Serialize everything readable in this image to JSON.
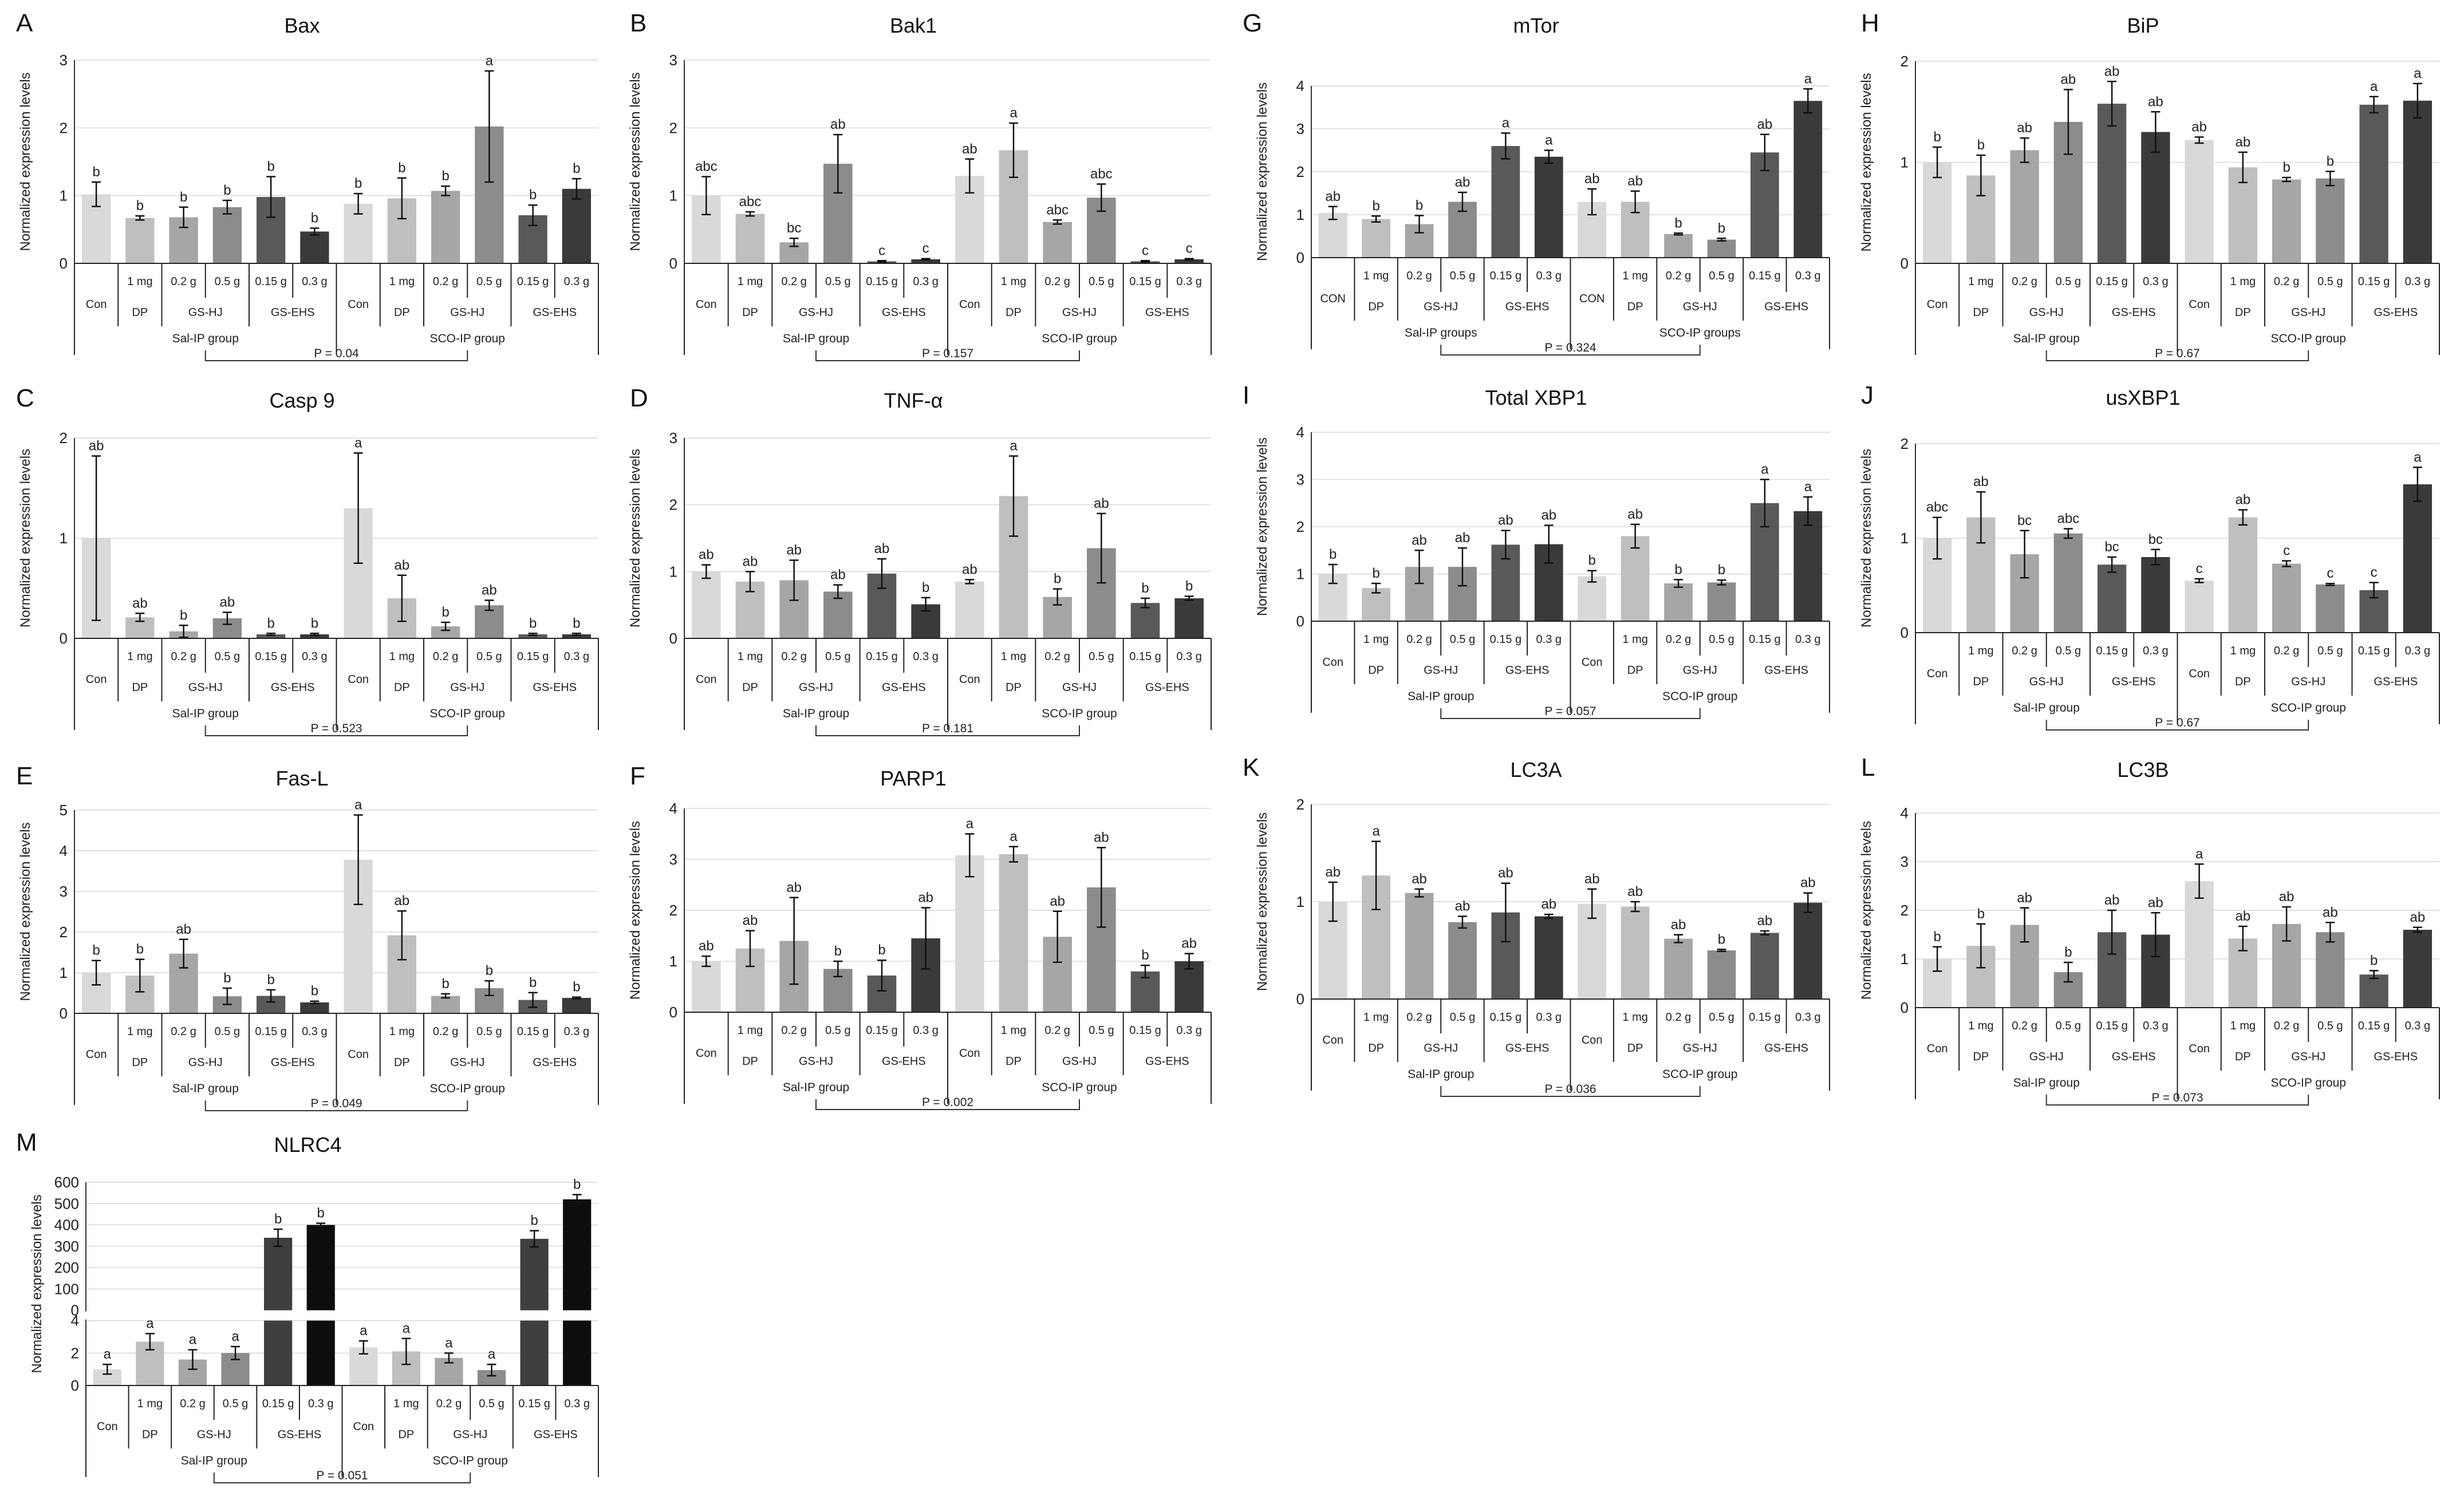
{
  "figure": {
    "shared": {
      "ylabel": "Normalized expression levels",
      "treatments": [
        "Con",
        "DP",
        "GS-HJ",
        "GS-EHS"
      ],
      "doses": [
        "",
        "1 mg",
        "0.2 g",
        "0.5 g",
        "0.15 g",
        "0.3 g"
      ],
      "group_labels": [
        "Sal-IP group",
        "SCO-IP group"
      ],
      "group_labels_alt": [
        "Sal-IP groups",
        "SCO-IP groups"
      ]
    },
    "colors": {
      "bars": [
        "#d9d9d9",
        "#bfbfbf",
        "#a6a6a6",
        "#8c8c8c",
        "#595959",
        "#3a3a3a"
      ],
      "bar_con_mtor": "#d0d0d0"
    }
  },
  "chart_data": [
    {
      "id": "A",
      "type": "bar",
      "title": "Bax",
      "ylim": [
        0,
        3
      ],
      "yticks": [
        0,
        1,
        2,
        3
      ],
      "first_label": "Con",
      "group_style": "default",
      "values": [
        1.02,
        0.67,
        0.68,
        0.83,
        0.98,
        0.47,
        0.88,
        0.96,
        1.07,
        2.02,
        0.71,
        1.1
      ],
      "errors": [
        0.18,
        0.03,
        0.15,
        0.1,
        0.3,
        0.05,
        0.15,
        0.3,
        0.07,
        0.82,
        0.15,
        0.15
      ],
      "letters": [
        "b",
        "b",
        "b",
        "b",
        "b",
        "b",
        "b",
        "b",
        "b",
        "a",
        "b",
        "b"
      ],
      "pvalue": "P = 0.04"
    },
    {
      "id": "B",
      "type": "bar",
      "title": "Bak1",
      "ylim": [
        0,
        3
      ],
      "yticks": [
        0,
        1,
        2,
        3
      ],
      "first_label": "Con",
      "group_style": "default",
      "values": [
        1.0,
        0.73,
        0.31,
        1.47,
        0.03,
        0.06,
        1.29,
        1.67,
        0.61,
        0.97,
        0.03,
        0.06
      ],
      "errors": [
        0.28,
        0.03,
        0.06,
        0.43,
        0.01,
        0.01,
        0.25,
        0.4,
        0.03,
        0.2,
        0.01,
        0.01
      ],
      "letters": [
        "abc",
        "abc",
        "bc",
        "ab",
        "c",
        "c",
        "ab",
        "a",
        "abc",
        "abc",
        "c",
        "c"
      ],
      "pvalue": "P = 0.157"
    },
    {
      "id": "G",
      "type": "bar",
      "title": "mTor",
      "ylim": [
        0,
        4
      ],
      "yticks": [
        0,
        1,
        2,
        3,
        4
      ],
      "first_label": "CON",
      "group_style": "alt",
      "values": [
        1.04,
        0.9,
        0.78,
        1.3,
        2.6,
        2.35,
        1.3,
        1.3,
        0.55,
        0.42,
        2.45,
        3.65
      ],
      "errors": [
        0.15,
        0.07,
        0.2,
        0.22,
        0.3,
        0.15,
        0.3,
        0.25,
        0.02,
        0.03,
        0.42,
        0.28
      ],
      "letters": [
        "ab",
        "b",
        "b",
        "ab",
        "a",
        "a",
        "ab",
        "ab",
        "b",
        "b",
        "ab",
        "a"
      ],
      "pvalue": "P = 0.324"
    },
    {
      "id": "H",
      "type": "bar",
      "title": "BiP",
      "ylim": [
        0,
        2
      ],
      "yticks": [
        0,
        1,
        2
      ],
      "first_label": "Con",
      "group_style": "default",
      "values": [
        1.0,
        0.87,
        1.12,
        1.4,
        1.58,
        1.3,
        1.22,
        0.95,
        0.83,
        0.84,
        1.57,
        1.61
      ],
      "errors": [
        0.15,
        0.2,
        0.12,
        0.32,
        0.22,
        0.2,
        0.03,
        0.15,
        0.02,
        0.07,
        0.08,
        0.17
      ],
      "letters": [
        "b",
        "b",
        "ab",
        "ab",
        "ab",
        "ab",
        "ab",
        "ab",
        "b",
        "b",
        "a",
        "a"
      ],
      "pvalue": "P = 0.67"
    },
    {
      "id": "C",
      "type": "bar",
      "title": "Casp 9",
      "ylim": [
        0,
        2
      ],
      "yticks": [
        0,
        1,
        2
      ],
      "first_label": "Con",
      "group_style": "default",
      "values": [
        1.0,
        0.21,
        0.07,
        0.2,
        0.04,
        0.04,
        1.3,
        0.4,
        0.12,
        0.33,
        0.04,
        0.04
      ],
      "errors": [
        0.82,
        0.04,
        0.06,
        0.06,
        0.01,
        0.01,
        0.55,
        0.23,
        0.04,
        0.05,
        0.01,
        0.01
      ],
      "letters": [
        "ab",
        "ab",
        "b",
        "ab",
        "b",
        "b",
        "a",
        "ab",
        "b",
        "ab",
        "b",
        "b"
      ],
      "pvalue": "P = 0.523"
    },
    {
      "id": "D",
      "type": "bar",
      "title": "TNF-α",
      "ylim": [
        0,
        3
      ],
      "yticks": [
        0,
        1,
        2,
        3
      ],
      "first_label": "Con",
      "group_style": "default",
      "values": [
        1.0,
        0.85,
        0.87,
        0.7,
        0.97,
        0.51,
        0.85,
        2.13,
        0.62,
        1.35,
        0.53,
        0.6
      ],
      "errors": [
        0.1,
        0.15,
        0.3,
        0.1,
        0.22,
        0.1,
        0.03,
        0.6,
        0.12,
        0.52,
        0.07,
        0.03
      ],
      "letters": [
        "ab",
        "ab",
        "ab",
        "ab",
        "ab",
        "b",
        "ab",
        "a",
        "b",
        "ab",
        "b",
        "b"
      ],
      "pvalue": "P = 0.181"
    },
    {
      "id": "I",
      "type": "bar",
      "title": "Total XBP1",
      "ylim": [
        0,
        4
      ],
      "yticks": [
        0,
        1,
        2,
        3,
        4
      ],
      "first_label": "Con",
      "group_style": "default",
      "values": [
        1.0,
        0.7,
        1.15,
        1.15,
        1.62,
        1.63,
        0.95,
        1.8,
        0.8,
        0.82,
        2.5,
        2.33
      ],
      "errors": [
        0.2,
        0.1,
        0.35,
        0.4,
        0.3,
        0.4,
        0.12,
        0.25,
        0.08,
        0.05,
        0.5,
        0.3
      ],
      "letters": [
        "b",
        "b",
        "ab",
        "ab",
        "ab",
        "ab",
        "b",
        "ab",
        "b",
        "b",
        "a",
        "a"
      ],
      "pvalue": "P = 0.057"
    },
    {
      "id": "J",
      "type": "bar",
      "title": "usXBP1",
      "ylim": [
        0,
        2
      ],
      "yticks": [
        0,
        1,
        2
      ],
      "first_label": "Con",
      "group_style": "default",
      "values": [
        1.0,
        1.22,
        0.83,
        1.05,
        0.72,
        0.8,
        0.55,
        1.22,
        0.73,
        0.51,
        0.45,
        1.57
      ],
      "errors": [
        0.22,
        0.27,
        0.25,
        0.05,
        0.08,
        0.08,
        0.02,
        0.08,
        0.03,
        0.01,
        0.08,
        0.18
      ],
      "letters": [
        "abc",
        "ab",
        "bc",
        "abc",
        "bc",
        "bc",
        "c",
        "ab",
        "c",
        "c",
        "c",
        "a"
      ],
      "pvalue": "P = 0.67"
    },
    {
      "id": "E",
      "type": "bar",
      "title": "Fas-L",
      "ylim": [
        0,
        5
      ],
      "yticks": [
        0,
        1,
        2,
        3,
        4,
        5
      ],
      "first_label": "Con",
      "group_style": "default",
      "values": [
        1.0,
        0.93,
        1.47,
        0.42,
        0.43,
        0.27,
        3.78,
        1.92,
        0.43,
        0.62,
        0.33,
        0.38
      ],
      "errors": [
        0.3,
        0.4,
        0.35,
        0.2,
        0.15,
        0.03,
        1.1,
        0.6,
        0.05,
        0.18,
        0.18,
        0.02
      ],
      "letters": [
        "b",
        "b",
        "ab",
        "b",
        "b",
        "b",
        "a",
        "ab",
        "b",
        "b",
        "b",
        "b"
      ],
      "pvalue": "P = 0.049"
    },
    {
      "id": "F",
      "type": "bar",
      "title": "PARP1",
      "ylim": [
        0,
        4
      ],
      "yticks": [
        0,
        1,
        2,
        3,
        4
      ],
      "first_label": "Con",
      "group_style": "default",
      "values": [
        1.0,
        1.25,
        1.4,
        0.85,
        0.72,
        1.45,
        3.08,
        3.1,
        1.48,
        2.45,
        0.8,
        1.0
      ],
      "errors": [
        0.1,
        0.35,
        0.85,
        0.15,
        0.3,
        0.6,
        0.42,
        0.15,
        0.5,
        0.78,
        0.12,
        0.15
      ],
      "letters": [
        "ab",
        "ab",
        "ab",
        "b",
        "b",
        "ab",
        "a",
        "a",
        "ab",
        "ab",
        "b",
        "ab"
      ],
      "pvalue": "P = 0.002"
    },
    {
      "id": "K",
      "type": "bar",
      "title": "LC3A",
      "ylim": [
        0,
        2
      ],
      "yticks": [
        0,
        1,
        2
      ],
      "first_label": "Con",
      "group_style": "default",
      "values": [
        1.0,
        1.27,
        1.09,
        0.79,
        0.89,
        0.85,
        0.98,
        0.95,
        0.62,
        0.5,
        0.68,
        0.99
      ],
      "errors": [
        0.2,
        0.35,
        0.04,
        0.06,
        0.3,
        0.02,
        0.15,
        0.05,
        0.04,
        0.01,
        0.02,
        0.1
      ],
      "letters": [
        "ab",
        "a",
        "ab",
        "ab",
        "ab",
        "ab",
        "ab",
        "ab",
        "ab",
        "b",
        "ab",
        "ab"
      ],
      "pvalue": "P = 0.036"
    },
    {
      "id": "L",
      "type": "bar",
      "title": "LC3B",
      "ylim": [
        0,
        4
      ],
      "yticks": [
        0,
        1,
        2,
        3,
        4
      ],
      "first_label": "Con",
      "group_style": "default",
      "values": [
        1.0,
        1.27,
        1.7,
        0.73,
        1.55,
        1.5,
        2.6,
        1.42,
        1.72,
        1.55,
        0.68,
        1.6
      ],
      "errors": [
        0.25,
        0.45,
        0.35,
        0.2,
        0.45,
        0.45,
        0.35,
        0.25,
        0.35,
        0.2,
        0.08,
        0.05
      ],
      "letters": [
        "b",
        "b",
        "ab",
        "b",
        "ab",
        "ab",
        "a",
        "ab",
        "ab",
        "ab",
        "b",
        "ab"
      ],
      "pvalue": "P = 0.073"
    },
    {
      "id": "M",
      "type": "bar",
      "title": "NLRC4",
      "broken_axis": true,
      "ylim_low": [
        0,
        4
      ],
      "yticks_low": [
        0,
        2,
        4
      ],
      "ylim_high": [
        0,
        600
      ],
      "yticks_high": [
        0,
        100,
        200,
        300,
        400,
        500,
        600
      ],
      "first_label": "Con",
      "group_style": "default",
      "values": [
        1.0,
        2.7,
        1.6,
        2.0,
        340,
        400,
        2.35,
        2.1,
        1.7,
        0.95,
        335,
        520
      ],
      "errors": [
        0.3,
        0.5,
        0.6,
        0.4,
        40,
        8,
        0.4,
        0.8,
        0.3,
        0.35,
        38,
        22
      ],
      "letters": [
        "a",
        "a",
        "a",
        "a",
        "b",
        "b",
        "a",
        "a",
        "a",
        "a",
        "b",
        "b"
      ],
      "pvalue": "P = 0.051"
    }
  ]
}
